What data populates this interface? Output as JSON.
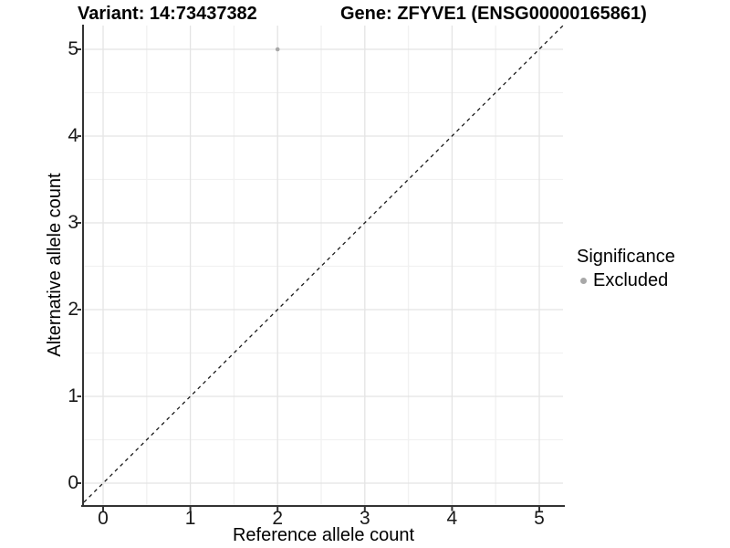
{
  "titles": {
    "variant": "Variant: 14:73437382",
    "gene": "Gene: ZFYVE1 (ENSG00000165861)"
  },
  "chart_data": {
    "type": "scatter",
    "titles": [
      "Variant: 14:73437382",
      "Gene: ZFYVE1 (ENSG00000165861)"
    ],
    "xlabel": "Reference allele count",
    "ylabel": "Alternative allele count",
    "x_ticks": [
      0,
      1,
      2,
      3,
      4,
      5
    ],
    "y_ticks": [
      0,
      1,
      2,
      3,
      4,
      5
    ],
    "xlim": [
      -0.25,
      5.25
    ],
    "ylim": [
      -0.25,
      5.25
    ],
    "grid": {
      "major": true,
      "minor": true,
      "minor_step": 0.5
    },
    "points": [
      {
        "x": 2,
        "y": 5,
        "series": "Excluded"
      }
    ],
    "reference_line": {
      "kind": "diagonal",
      "equation": "y = x",
      "style": "dashed"
    },
    "legend": {
      "title": "Significance",
      "position": "right",
      "items": [
        {
          "label": "Excluded",
          "color": "#a8a8a8"
        }
      ]
    }
  },
  "colors": {
    "background": "#ffffff",
    "text": "#000000",
    "axis_line": "#333333",
    "grid_major": "#e4e4e4",
    "grid_minor": "#f1f1f1",
    "point": "#a8a8a8",
    "reference_line": "#1a1a1a"
  }
}
